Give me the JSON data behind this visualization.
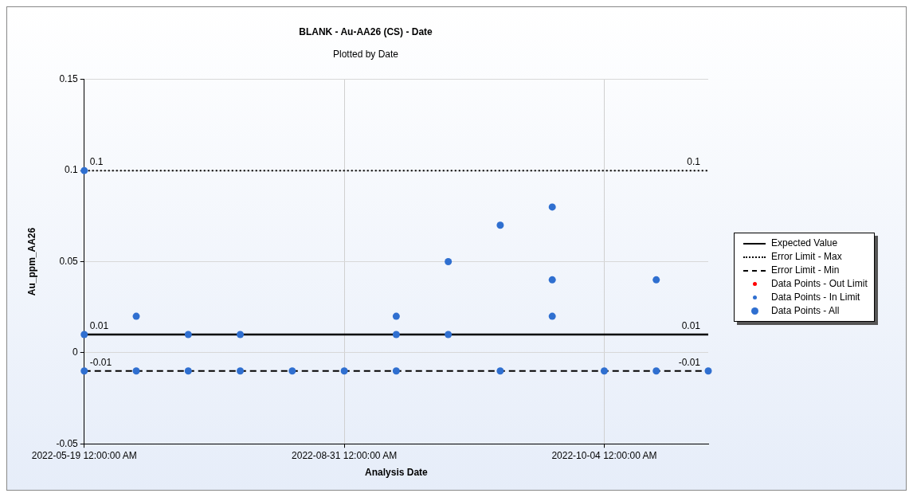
{
  "chart_data": {
    "type": "scatter",
    "title": "BLANK - Au-AA26 (CS) - Date",
    "subtitle": "Plotted by Date",
    "xlabel": "Analysis Date",
    "ylabel": "Au_ppm_AA26",
    "categories": [
      "2022-05-19 12:00:00 AM",
      null,
      null,
      null,
      null,
      "2022-08-31 12:00:00 AM",
      null,
      null,
      null,
      null,
      "2022-10-04 12:00:00 AM",
      null,
      null
    ],
    "ylim": [
      -0.05,
      0.15
    ],
    "yticks": [
      -0.05,
      0,
      0.05,
      0.1,
      0.15
    ],
    "grid": true,
    "legend": "right",
    "series": [
      {
        "name": "Expected Value",
        "type": "line",
        "color": "#000000",
        "line_style": "solid",
        "marker": "none",
        "values": [
          0.01,
          0.01,
          0.01,
          0.01,
          0.01,
          0.01,
          0.01,
          0.01,
          0.01,
          0.01,
          0.01,
          0.01,
          0.01
        ],
        "value_labels": [
          "0.01",
          null,
          null,
          null,
          null,
          null,
          null,
          null,
          null,
          null,
          null,
          null,
          "0.01"
        ]
      },
      {
        "name": "Error Limit - Max",
        "type": "line",
        "color": "#000000",
        "line_style": "dotted",
        "marker": "none",
        "values": [
          0.1,
          0.1,
          0.1,
          0.1,
          0.1,
          0.1,
          0.1,
          0.1,
          0.1,
          0.1,
          0.1,
          0.1,
          0.1
        ],
        "value_labels": [
          "0.1",
          null,
          null,
          null,
          null,
          null,
          null,
          null,
          null,
          null,
          null,
          null,
          "0.1"
        ]
      },
      {
        "name": "Error Limit - Min",
        "type": "line",
        "color": "#000000",
        "line_style": "dashed",
        "marker": "none",
        "values": [
          -0.01,
          -0.01,
          -0.01,
          -0.01,
          -0.01,
          -0.01,
          -0.01,
          -0.01,
          -0.01,
          -0.01,
          -0.01,
          -0.01,
          -0.01
        ],
        "value_labels": [
          "-0.01",
          null,
          null,
          null,
          null,
          null,
          null,
          null,
          null,
          null,
          null,
          null,
          "-0.01"
        ]
      },
      {
        "name": "Data Points - Out Limit",
        "type": "scatter",
        "color": "#ff0000",
        "marker": "circle",
        "values": [
          null,
          null,
          null,
          null,
          null,
          null,
          null,
          null,
          null,
          null,
          null,
          null,
          null
        ]
      },
      {
        "name": "Data Points - In Limit",
        "type": "scatter",
        "color": "#2f6fd0",
        "marker": "circle",
        "values": [
          null,
          null,
          null,
          null,
          null,
          null,
          null,
          null,
          null,
          null,
          null,
          null,
          null
        ]
      },
      {
        "name": "Data Points - All",
        "type": "scatter",
        "color": "#2f6fd0",
        "marker": "circle",
        "values": [
          0.1,
          0.02,
          0.01,
          0.01,
          -0.01,
          -0.01,
          0.02,
          0.05,
          0.07,
          0.08,
          -0.01,
          0.04,
          -0.01
        ]
      },
      {
        "type": "scatter",
        "color": "#2f6fd0",
        "marker": "circle",
        "values": [
          0.01,
          -0.01,
          -0.01,
          -0.01,
          null,
          null,
          0.01,
          0.01,
          -0.01,
          0.04,
          null,
          -0.01,
          null
        ]
      },
      {
        "type": "scatter",
        "color": "#2f6fd0",
        "marker": "circle",
        "values": [
          -0.01,
          null,
          null,
          null,
          null,
          null,
          -0.01,
          null,
          null,
          0.02,
          null,
          null,
          null
        ]
      }
    ]
  }
}
